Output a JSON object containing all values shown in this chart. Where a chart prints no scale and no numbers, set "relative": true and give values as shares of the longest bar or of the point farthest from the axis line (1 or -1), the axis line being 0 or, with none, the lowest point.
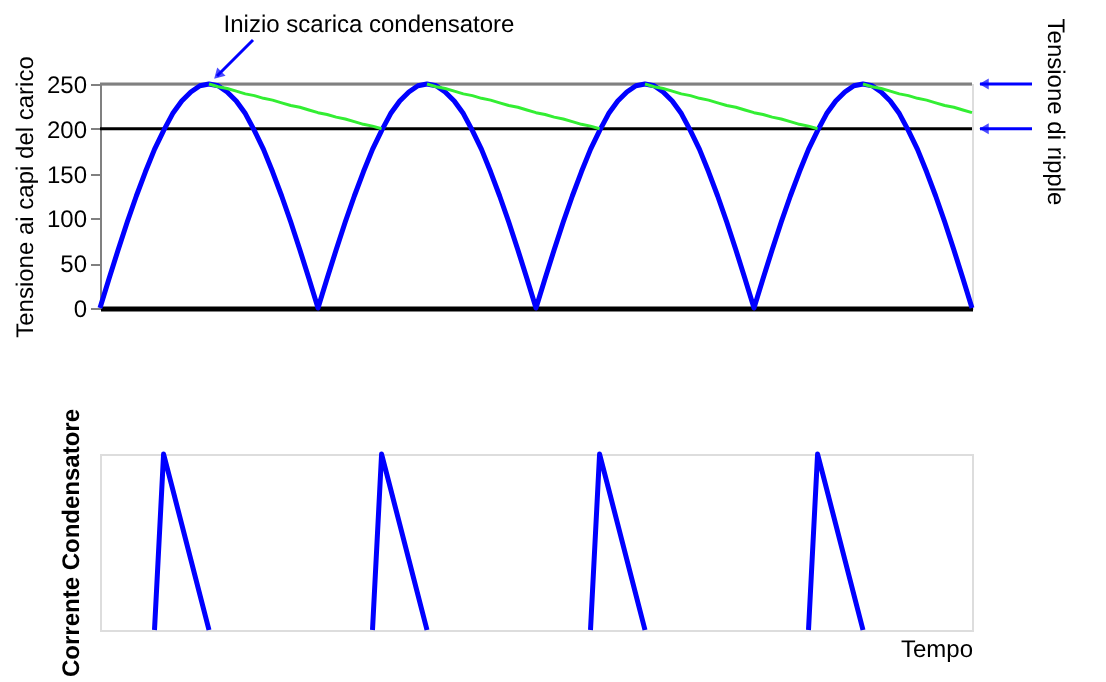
{
  "chart_data": [
    {
      "type": "line",
      "ylabel": "Tensione ai capi del carico",
      "categories": [
        null,
        null,
        null,
        null,
        null,
        null,
        null,
        null,
        null,
        null,
        null,
        null,
        null,
        null,
        null,
        null,
        null,
        null,
        null,
        null,
        null,
        null,
        null,
        null,
        null,
        null,
        null,
        null,
        null,
        null,
        null,
        null,
        null,
        null,
        null,
        null,
        null,
        null,
        null,
        null,
        null,
        null,
        null,
        null,
        null,
        null,
        null,
        null,
        null,
        null,
        null,
        null,
        null,
        null,
        null,
        null,
        null,
        null,
        null,
        null,
        null,
        null,
        null,
        null,
        null,
        null,
        null,
        null,
        null,
        null,
        null,
        null,
        null,
        null,
        null,
        null,
        null,
        null,
        null,
        null,
        null,
        null,
        null,
        null,
        null,
        null,
        null,
        null,
        null,
        null,
        null,
        null,
        null,
        null,
        null,
        null,
        null
      ],
      "ylim": [
        0,
        250
      ],
      "yticks": [
        0,
        50,
        100,
        150,
        200,
        250
      ],
      "tick_labels": "y",
      "marker": "none",
      "line_style": "solid",
      "series": [
        {
          "color": "#0000ff",
          "values": [
            0,
            33,
            65,
            96,
            125,
            152,
            177,
            198,
            217,
            231,
            241,
            248,
            250,
            248,
            241,
            231,
            217,
            198,
            177,
            152,
            125,
            96,
            65,
            33,
            0,
            33,
            65,
            96,
            125,
            152,
            177,
            198,
            217,
            231,
            241,
            248,
            250,
            248,
            241,
            231,
            217,
            198,
            177,
            152,
            125,
            96,
            65,
            33,
            0,
            33,
            65,
            96,
            125,
            152,
            177,
            198,
            217,
            231,
            241,
            248,
            250,
            248,
            241,
            231,
            217,
            198,
            177,
            152,
            125,
            96,
            65,
            33,
            0,
            33,
            65,
            96,
            125,
            152,
            177,
            198,
            217,
            231,
            241,
            248,
            250,
            248,
            241,
            231,
            217,
            198,
            177,
            152,
            125,
            96,
            65,
            33,
            0
          ]
        },
        {
          "color": "#33ee33",
          "values": [
            null,
            null,
            null,
            null,
            null,
            null,
            null,
            null,
            null,
            null,
            null,
            null,
            250,
            247,
            245,
            242,
            239,
            237,
            234,
            232,
            229,
            226,
            224,
            221,
            218,
            216,
            213,
            211,
            208,
            205,
            203,
            200,
            null,
            null,
            null,
            null,
            250,
            247,
            245,
            242,
            239,
            237,
            234,
            232,
            229,
            226,
            224,
            221,
            218,
            216,
            213,
            211,
            208,
            205,
            203,
            200,
            null,
            null,
            null,
            null,
            250,
            247,
            245,
            242,
            239,
            237,
            234,
            232,
            229,
            226,
            224,
            221,
            218,
            216,
            213,
            211,
            208,
            205,
            203,
            200,
            null,
            null,
            null,
            null,
            250,
            247,
            245,
            242,
            239,
            237,
            234,
            232,
            229,
            226,
            224,
            221,
            218
          ]
        }
      ],
      "ref_lines": [
        {
          "axis": "y",
          "value": 250,
          "color": "#808080"
        },
        {
          "axis": "y",
          "value": 200,
          "color": "#000000"
        }
      ],
      "annotations": [
        "Inizio scarica condensatore",
        "Tensione di ripple"
      ]
    },
    {
      "type": "line",
      "ylabel": "Corrente Condensatore",
      "xlabel": "Tempo",
      "relative": true,
      "tick_labels": false,
      "marker": "none",
      "line_style": "solid",
      "categories": [
        null,
        null,
        null,
        null,
        null,
        null,
        null,
        null,
        null,
        null,
        null,
        null,
        null,
        null,
        null,
        null,
        null,
        null,
        null,
        null,
        null,
        null,
        null,
        null,
        null,
        null,
        null,
        null,
        null,
        null,
        null,
        null,
        null,
        null,
        null,
        null,
        null,
        null,
        null,
        null,
        null,
        null,
        null,
        null,
        null,
        null,
        null,
        null,
        null,
        null,
        null,
        null,
        null,
        null,
        null,
        null,
        null,
        null,
        null,
        null,
        null,
        null,
        null,
        null,
        null,
        null,
        null,
        null,
        null,
        null,
        null,
        null,
        null,
        null,
        null,
        null,
        null,
        null,
        null,
        null,
        null,
        null,
        null,
        null,
        null,
        null,
        null,
        null,
        null,
        null,
        null,
        null,
        null,
        null,
        null,
        null,
        null
      ],
      "series": [
        {
          "color": "#0000ff",
          "values": [
            null,
            null,
            null,
            null,
            null,
            null,
            0,
            1,
            0.8,
            0.6,
            0.4,
            0.2,
            0,
            null,
            null,
            null,
            null,
            null,
            null,
            null,
            null,
            null,
            null,
            null,
            null,
            null,
            null,
            null,
            null,
            null,
            0,
            1,
            0.8,
            0.6,
            0.4,
            0.2,
            0,
            null,
            null,
            null,
            null,
            null,
            null,
            null,
            null,
            null,
            null,
            null,
            null,
            null,
            null,
            null,
            null,
            null,
            0,
            1,
            0.8,
            0.6,
            0.4,
            0.2,
            0,
            null,
            null,
            null,
            null,
            null,
            null,
            null,
            null,
            null,
            null,
            null,
            null,
            null,
            null,
            null,
            null,
            null,
            0,
            1,
            0.8,
            0.6,
            0.4,
            0.2,
            0,
            null,
            null,
            null,
            null,
            null,
            null,
            null,
            null,
            null,
            null,
            null,
            null
          ]
        }
      ]
    }
  ]
}
